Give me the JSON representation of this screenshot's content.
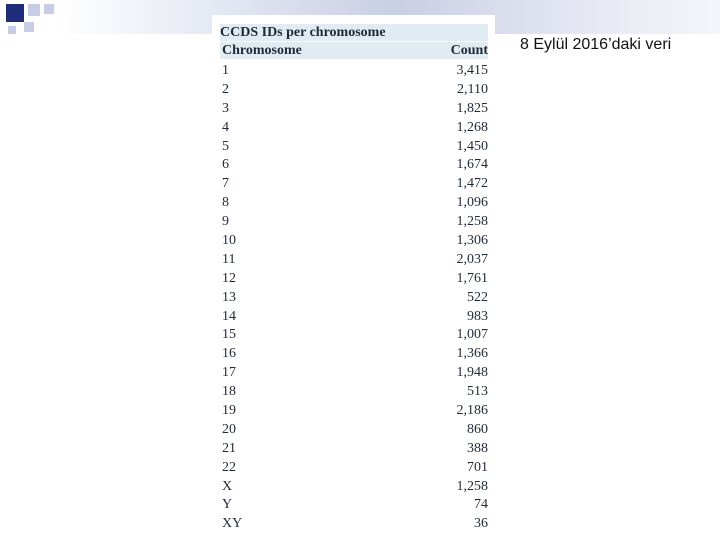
{
  "note": "8 Eylül 2016’daki veri",
  "table": {
    "title": "CCDS IDs per chromosome",
    "headers": [
      "Chromosome",
      "Count"
    ],
    "rows": [
      [
        "1",
        "3,415"
      ],
      [
        "2",
        "2,110"
      ],
      [
        "3",
        "1,825"
      ],
      [
        "4",
        "1,268"
      ],
      [
        "5",
        "1,450"
      ],
      [
        "6",
        "1,674"
      ],
      [
        "7",
        "1,472"
      ],
      [
        "8",
        "1,096"
      ],
      [
        "9",
        "1,258"
      ],
      [
        "10",
        "1,306"
      ],
      [
        "11",
        "2,037"
      ],
      [
        "12",
        "1,761"
      ],
      [
        "13",
        "522"
      ],
      [
        "14",
        "983"
      ],
      [
        "15",
        "1,007"
      ],
      [
        "16",
        "1,366"
      ],
      [
        "17",
        "1,948"
      ],
      [
        "18",
        "513"
      ],
      [
        "19",
        "2,186"
      ],
      [
        "20",
        "860"
      ],
      [
        "21",
        "388"
      ],
      [
        "22",
        "701"
      ],
      [
        "X",
        "1,258"
      ],
      [
        "Y",
        "74"
      ],
      [
        "XY",
        "36"
      ]
    ]
  }
}
